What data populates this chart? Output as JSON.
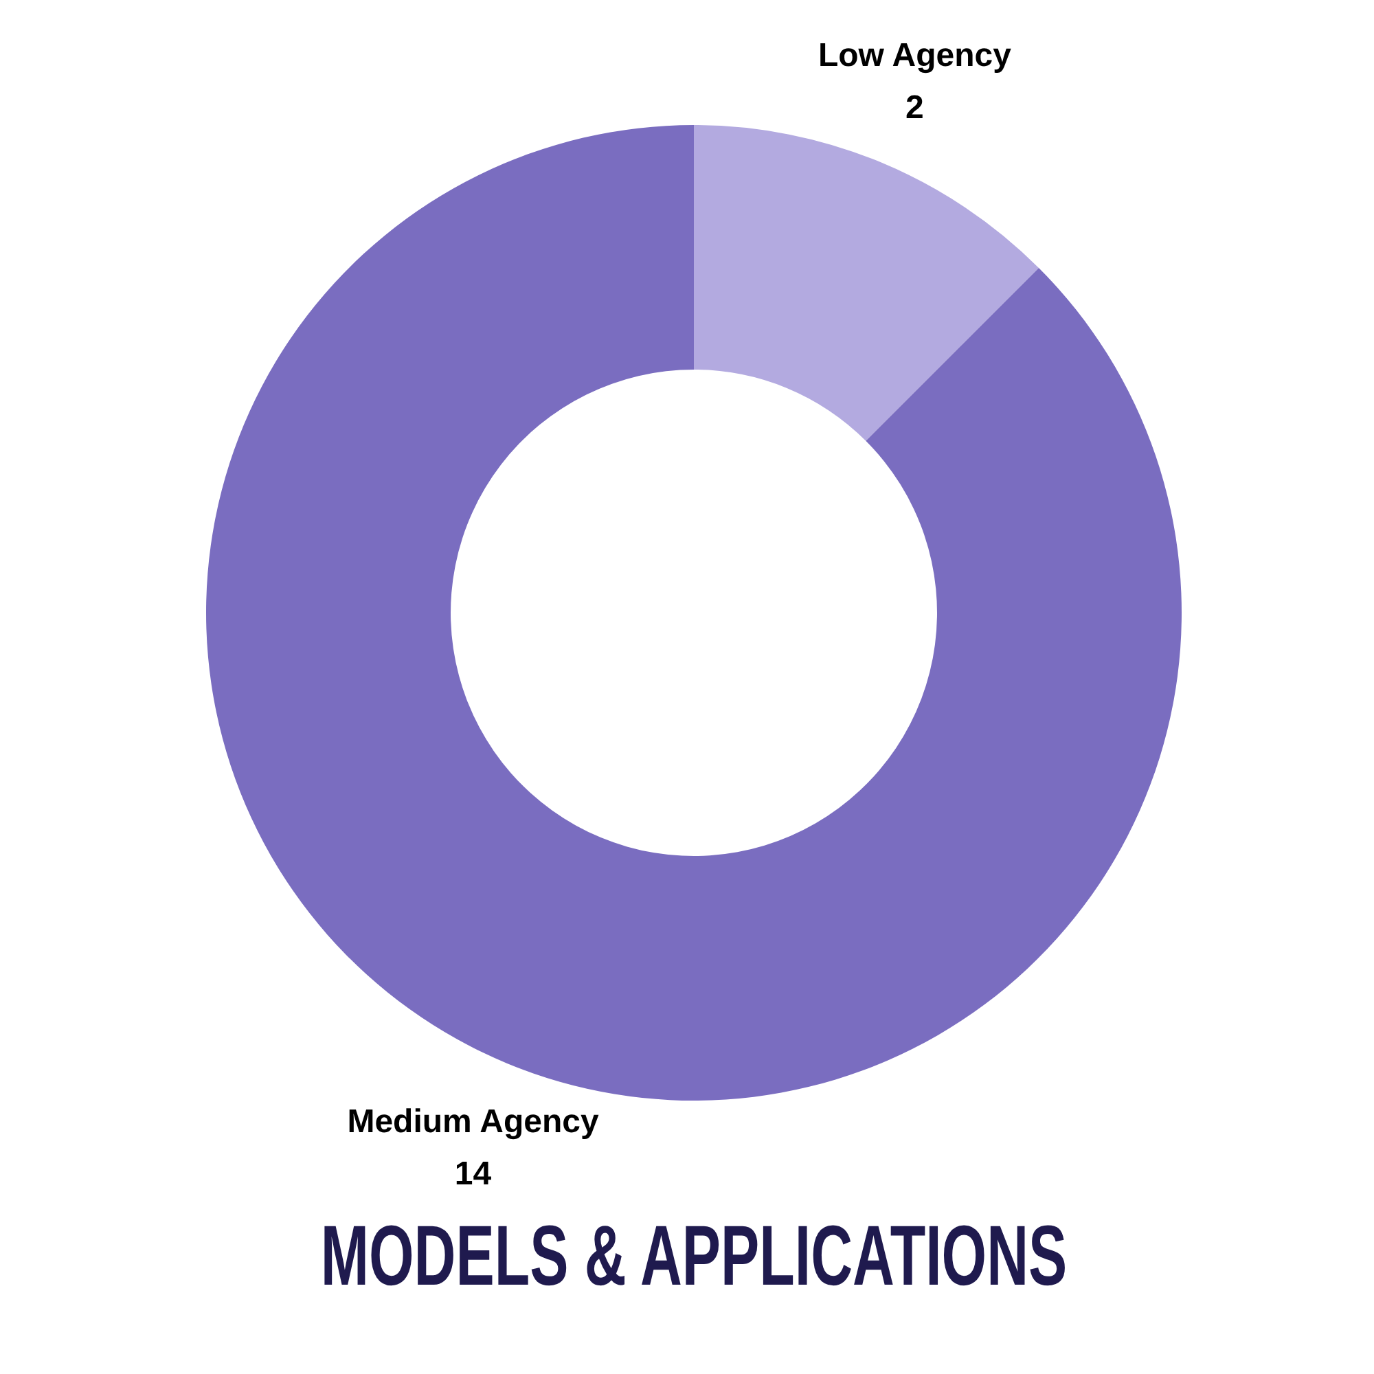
{
  "chart_data": {
    "type": "donut",
    "title": "MODELS & APPLICATIONS",
    "categories": [
      "Low Agency",
      "Medium Agency"
    ],
    "values": [
      2,
      14
    ],
    "colors": [
      "#b3aae0",
      "#7a6dc0"
    ],
    "data_labels": true
  }
}
